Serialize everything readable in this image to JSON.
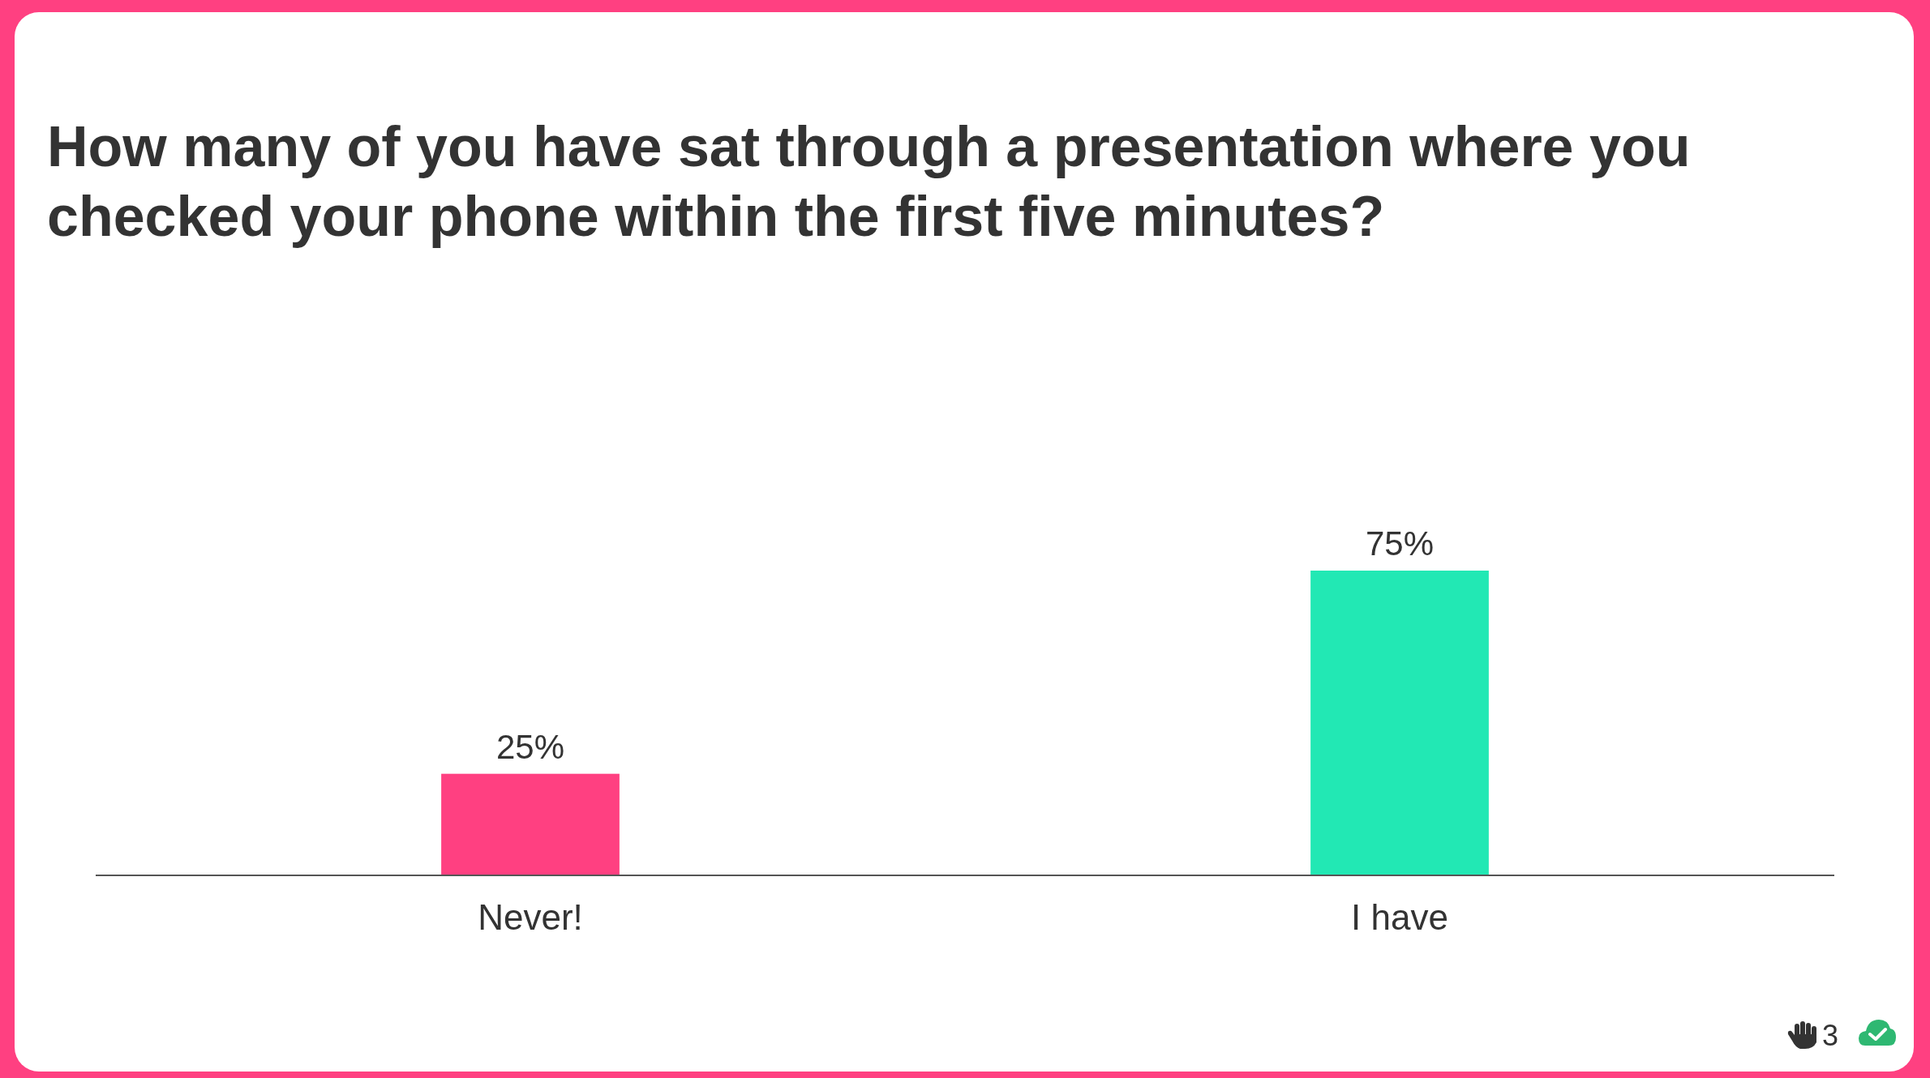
{
  "chart_data": {
    "type": "bar",
    "title": "How many of you have sat through a presentation where you checked your phone within the first five minutes?",
    "categories": [
      "Never!",
      "I have"
    ],
    "values": [
      25,
      75
    ],
    "colors": [
      "#ff4081",
      "#22e8b4"
    ],
    "value_labels": [
      "25%",
      "75%"
    ],
    "annotations": [
      "3"
    ]
  }
}
